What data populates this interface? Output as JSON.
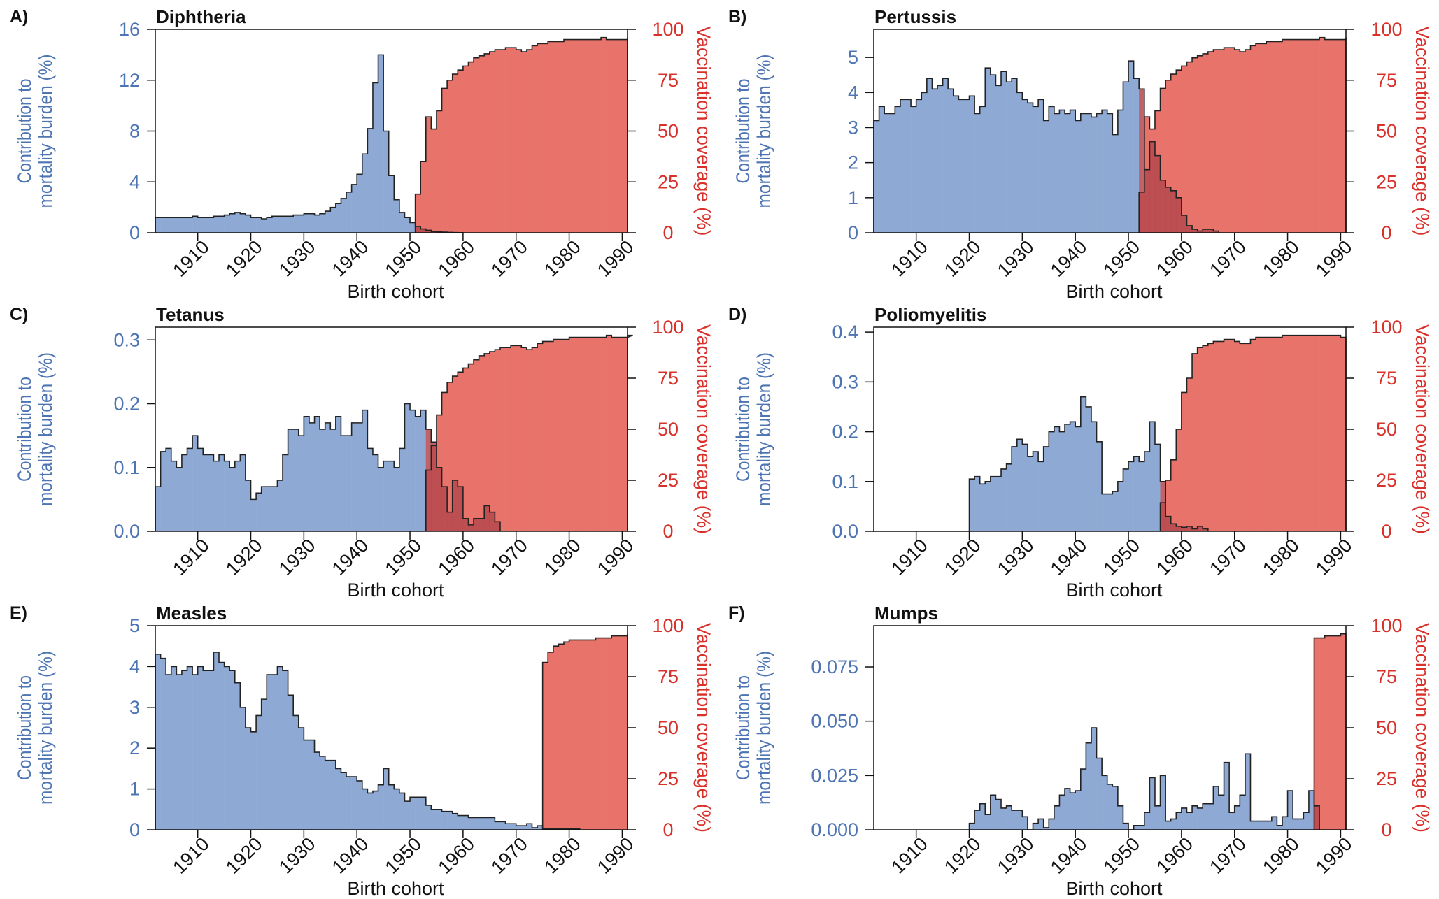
{
  "figure": {
    "xlabel": "Birth cohort",
    "ylabel_left_line1": "Contribution to",
    "ylabel_left_line2": "mortality burden (%)",
    "ylabel_right": "Vaccination coverage (%)",
    "right_ticks": [
      "0",
      "25",
      "50",
      "75",
      "100"
    ],
    "x_ticks": [
      "1910",
      "1920",
      "1930",
      "1940",
      "1950",
      "1960",
      "1970",
      "1980",
      "1990"
    ],
    "colors": {
      "burden": "#8eaad4",
      "coverage": "#e8736a",
      "overlap": "#b5484d",
      "left_axis_text": "#4d74b3",
      "right_axis_text": "#d9302a"
    }
  },
  "chart_data": [
    {
      "panel": "A)",
      "title": "Diphtheria",
      "type": "bar",
      "x_range": [
        1902,
        1991
      ],
      "ylim_left": [
        0,
        16
      ],
      "ylim_right": [
        0,
        100
      ],
      "left_ticks": [
        "0",
        "4",
        "8",
        "12",
        "16"
      ],
      "burden": {
        "start": 1902,
        "values": [
          1.2,
          1.2,
          1.2,
          1.2,
          1.2,
          1.2,
          1.2,
          1.3,
          1.2,
          1.2,
          1.2,
          1.3,
          1.3,
          1.4,
          1.5,
          1.6,
          1.5,
          1.4,
          1.2,
          1.2,
          1.1,
          1.2,
          1.3,
          1.3,
          1.3,
          1.3,
          1.4,
          1.4,
          1.5,
          1.5,
          1.4,
          1.5,
          1.7,
          2.0,
          2.3,
          2.7,
          3.2,
          3.8,
          4.6,
          6.2,
          8.2,
          11.8,
          14.0,
          8.0,
          4.5,
          2.6,
          1.6,
          1.2,
          0.8,
          0.5,
          0.3,
          0.2,
          0.1,
          0.08,
          0.05,
          0.03,
          0.02,
          0.01
        ]
      },
      "coverage": {
        "start": 1951,
        "values": [
          19,
          35,
          57,
          51,
          60,
          71,
          75,
          78,
          80,
          82,
          84,
          86,
          87,
          88,
          89,
          90,
          90,
          91,
          91,
          90,
          89,
          90,
          92,
          93,
          93,
          94,
          94,
          94,
          95,
          95,
          95,
          95,
          95,
          95,
          95,
          96,
          95,
          95,
          95,
          95,
          96
        ]
      }
    },
    {
      "panel": "B)",
      "title": "Pertussis",
      "type": "bar",
      "x_range": [
        1902,
        1991
      ],
      "ylim_left": [
        0,
        5.8
      ],
      "ylim_right": [
        0,
        100
      ],
      "left_ticks": [
        "0",
        "1",
        "2",
        "3",
        "4",
        "5"
      ],
      "burden": {
        "start": 1902,
        "values": [
          3.2,
          3.6,
          3.4,
          3.4,
          3.6,
          3.8,
          3.8,
          3.6,
          3.8,
          4.0,
          4.4,
          4.1,
          4.2,
          4.4,
          4.1,
          3.9,
          3.8,
          3.8,
          3.9,
          3.4,
          3.6,
          4.7,
          4.5,
          4.2,
          4.6,
          4.3,
          4.4,
          4.0,
          3.8,
          3.7,
          3.6,
          3.8,
          3.2,
          3.6,
          3.4,
          3.5,
          3.4,
          3.5,
          3.2,
          3.4,
          3.4,
          3.3,
          3.4,
          3.5,
          3.4,
          2.8,
          3.5,
          4.3,
          4.9,
          4.4,
          4.1,
          1.8,
          2.6,
          2.2,
          1.5,
          1.3,
          1.2,
          1.0,
          0.5,
          0.2,
          0.1,
          0.05,
          0.1,
          0.1,
          0.05
        ]
      },
      "coverage": {
        "start": 1952,
        "values": [
          20,
          57,
          51,
          60,
          71,
          75,
          78,
          80,
          82,
          84,
          86,
          87,
          88,
          89,
          90,
          90,
          91,
          91,
          90,
          89,
          90,
          92,
          93,
          93,
          94,
          94,
          94,
          95,
          95,
          95,
          95,
          95,
          95,
          95,
          96,
          95,
          95,
          95,
          95,
          96
        ]
      }
    },
    {
      "panel": "C)",
      "title": "Tetanus",
      "type": "bar",
      "x_range": [
        1902,
        1991
      ],
      "ylim_left": [
        0,
        0.32
      ],
      "ylim_right": [
        0,
        100
      ],
      "left_ticks": [
        "0.0",
        "0.1",
        "0.2",
        "0.3"
      ],
      "burden": {
        "start": 1902,
        "values": [
          0.07,
          0.125,
          0.13,
          0.11,
          0.1,
          0.12,
          0.13,
          0.15,
          0.13,
          0.12,
          0.12,
          0.11,
          0.12,
          0.11,
          0.1,
          0.11,
          0.12,
          0.08,
          0.05,
          0.06,
          0.07,
          0.07,
          0.07,
          0.08,
          0.12,
          0.16,
          0.16,
          0.15,
          0.18,
          0.17,
          0.18,
          0.16,
          0.17,
          0.16,
          0.18,
          0.15,
          0.15,
          0.17,
          0.17,
          0.19,
          0.13,
          0.12,
          0.1,
          0.11,
          0.11,
          0.1,
          0.13,
          0.2,
          0.19,
          0.18,
          0.19,
          0.16,
          0.14,
          0.1,
          0.07,
          0.03,
          0.08,
          0.07,
          0.02,
          0.01,
          0.02,
          0.02,
          0.04,
          0.03,
          0.015
        ]
      },
      "coverage": {
        "start": 1953,
        "values": [
          30,
          42,
          57,
          68,
          73,
          76,
          78,
          80,
          82,
          84,
          86,
          87,
          88,
          89,
          90,
          90,
          91,
          91,
          90,
          89,
          90,
          92,
          93,
          93,
          94,
          94,
          94,
          95,
          95,
          95,
          95,
          95,
          95,
          95,
          96,
          95,
          95,
          95,
          95,
          96
        ]
      }
    },
    {
      "panel": "D)",
      "title": "Poliomyelitis",
      "type": "bar",
      "x_range": [
        1902,
        1991
      ],
      "ylim_left": [
        0,
        0.41
      ],
      "ylim_right": [
        0,
        100
      ],
      "left_ticks": [
        "0.0",
        "0.1",
        "0.2",
        "0.3",
        "0.4"
      ],
      "burden": {
        "start": 1920,
        "values": [
          0.105,
          0.11,
          0.095,
          0.1,
          0.11,
          0.11,
          0.125,
          0.135,
          0.17,
          0.185,
          0.175,
          0.15,
          0.16,
          0.14,
          0.17,
          0.2,
          0.21,
          0.2,
          0.215,
          0.22,
          0.21,
          0.27,
          0.25,
          0.22,
          0.18,
          0.075,
          0.075,
          0.08,
          0.1,
          0.125,
          0.14,
          0.15,
          0.14,
          0.16,
          0.22,
          0.175,
          0.1,
          0.03,
          0.015,
          0.01,
          0.008,
          0.01,
          0.005,
          0.01,
          0.005
        ]
      },
      "coverage": {
        "start": 1956,
        "values": [
          14,
          25,
          35,
          50,
          68,
          75,
          87,
          90,
          91,
          92,
          93,
          93,
          94,
          94,
          93,
          92,
          92,
          94,
          95,
          95,
          95,
          95,
          95,
          96,
          96,
          96,
          96,
          96,
          96,
          96,
          96,
          96,
          96,
          96,
          95,
          95
        ]
      }
    },
    {
      "panel": "E)",
      "title": "Measles",
      "type": "bar",
      "x_range": [
        1902,
        1991
      ],
      "ylim_left": [
        0,
        5
      ],
      "ylim_right": [
        0,
        100
      ],
      "left_ticks": [
        "0",
        "1",
        "2",
        "3",
        "4",
        "5"
      ],
      "burden": {
        "start": 1902,
        "values": [
          4.3,
          4.2,
          3.8,
          4.0,
          3.8,
          3.9,
          4.0,
          3.8,
          4.0,
          3.9,
          3.9,
          4.35,
          4.1,
          4.0,
          3.9,
          3.6,
          3.0,
          2.5,
          2.4,
          2.8,
          3.2,
          3.8,
          3.8,
          4.0,
          3.9,
          3.3,
          2.8,
          2.5,
          2.2,
          2.2,
          1.9,
          1.8,
          1.7,
          1.7,
          1.5,
          1.4,
          1.3,
          1.3,
          1.2,
          1.0,
          0.9,
          0.95,
          1.1,
          1.5,
          1.1,
          1.0,
          0.9,
          0.7,
          0.8,
          0.8,
          0.8,
          0.6,
          0.5,
          0.5,
          0.45,
          0.45,
          0.4,
          0.35,
          0.35,
          0.3,
          0.3,
          0.3,
          0.3,
          0.3,
          0.2,
          0.2,
          0.15,
          0.15,
          0.1,
          0.1,
          0.15,
          0.05,
          0.1,
          0.02,
          0.02,
          0.02,
          0.02,
          0.02,
          0.02,
          0.02
        ]
      },
      "coverage": {
        "start": 1975,
        "values": [
          82,
          87,
          90,
          91,
          92,
          93,
          93,
          93,
          93,
          93,
          94,
          94,
          94,
          95,
          95,
          95,
          96
        ]
      }
    },
    {
      "panel": "F)",
      "title": "Mumps",
      "type": "bar",
      "x_range": [
        1902,
        1991
      ],
      "ylim_left": [
        0,
        0.094
      ],
      "ylim_right": [
        0,
        100
      ],
      "left_ticks": [
        "0.000",
        "0.025",
        "0.050",
        "0.075"
      ],
      "burden": {
        "start": 1920,
        "values": [
          0.003,
          0.009,
          0.012,
          0.007,
          0.016,
          0.014,
          0.01,
          0.011,
          0.009,
          0.009,
          0.006,
          0.0,
          0.003,
          0.005,
          0.001,
          0.005,
          0.011,
          0.016,
          0.019,
          0.017,
          0.018,
          0.028,
          0.04,
          0.047,
          0.033,
          0.025,
          0.021,
          0.02,
          0.011,
          0.003,
          0.0,
          0.002,
          0.002,
          0.008,
          0.024,
          0.011,
          0.025,
          0.004,
          0.005,
          0.008,
          0.01,
          0.008,
          0.011,
          0.01,
          0.012,
          0.012,
          0.02,
          0.016,
          0.031,
          0.008,
          0.011,
          0.016,
          0.035,
          0.004,
          0.004,
          0.004,
          0.004,
          0.006,
          0.002,
          0.006,
          0.018,
          0.005,
          0.005,
          0.008,
          0.018,
          0.011
        ]
      },
      "coverage": {
        "start": 1985,
        "values": [
          94,
          94,
          95,
          95,
          95,
          96,
          95
        ]
      }
    }
  ]
}
